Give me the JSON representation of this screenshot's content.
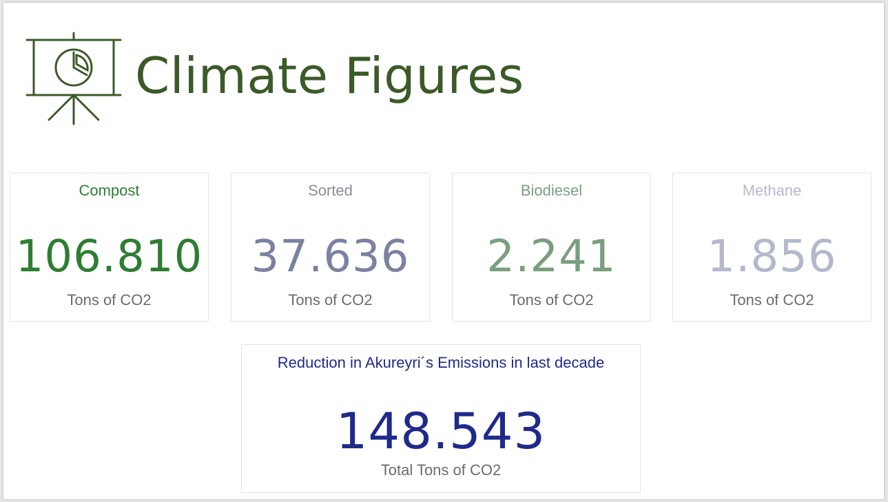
{
  "title": "Climate Figures",
  "icons": {
    "header": "presentation-pie-chart-icon"
  },
  "colors": {
    "brand": "#3c5a28",
    "compost": "#2e7d32",
    "sorted": "#7b82a0",
    "biodiesel": "#7a9e80",
    "methane": "#b4b8cc",
    "total": "#1f2a8a"
  },
  "cards": [
    {
      "label": "Compost",
      "value": "106.810",
      "unit": "Tons of CO2"
    },
    {
      "label": "Sorted",
      "value": "37.636",
      "unit": "Tons of CO2"
    },
    {
      "label": "Biodiesel",
      "value": "2.241",
      "unit": "Tons of CO2"
    },
    {
      "label": "Methane",
      "value": "1.856",
      "unit": "Tons of CO2"
    }
  ],
  "total": {
    "label": "Reduction in Akureyri´s Emissions in last decade",
    "value": "148.543",
    "unit": "Total Tons of CO2"
  }
}
